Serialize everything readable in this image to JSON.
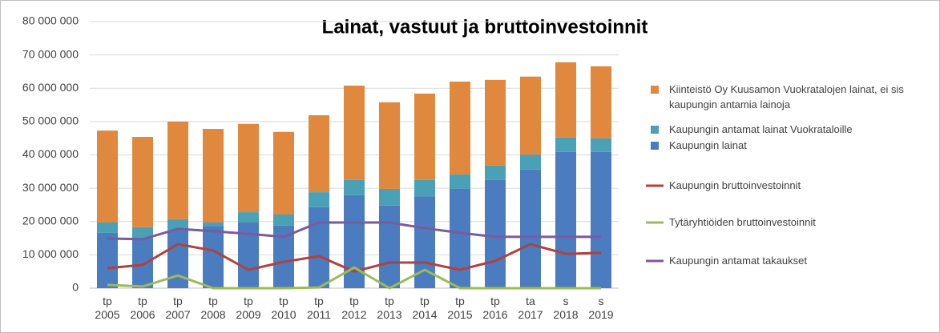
{
  "chart_data": {
    "type": "bar",
    "title": "Lainat, vastuut ja bruttoinvestoinnit",
    "categories": [
      "tp 2005",
      "tp 2006",
      "tp 2007",
      "tp 2008",
      "tp 2009",
      "tp 2010",
      "tp 2011",
      "tp 2012",
      "tp 2013",
      "tp 2014",
      "tp 2015",
      "tp 2016",
      "ta 2017",
      "s 2018",
      "s 2019"
    ],
    "series": [
      {
        "name": "Kiinteistö Oy Kuusamon Vuokratalojen lainat, ei sis kaupungin antamia lainoja",
        "type": "bar",
        "color": "#e0883e",
        "values": [
          27600000,
          27100000,
          29300000,
          28100000,
          26500000,
          24800000,
          23100000,
          28300000,
          26000000,
          25900000,
          27900000,
          25700000,
          23400000,
          22600000,
          21600000
        ]
      },
      {
        "name": "Kaupungin antamat lainat Vuokrataloille",
        "type": "bar",
        "color": "#4aa0b5",
        "values": [
          3100000,
          3200000,
          3200000,
          1000000,
          3100000,
          3300000,
          4500000,
          4600000,
          5000000,
          4900000,
          4300000,
          4300000,
          4500000,
          4300000,
          4100000
        ]
      },
      {
        "name": "Kaupungin lainat",
        "type": "bar",
        "color": "#4a7cbf",
        "values": [
          16600000,
          15100000,
          17500000,
          18700000,
          19700000,
          18800000,
          24300000,
          27900000,
          24800000,
          27600000,
          29800000,
          32500000,
          35600000,
          40900000,
          40900000
        ]
      },
      {
        "name": "Kaupungin bruttoinvestoinnit",
        "type": "line",
        "color": "#b0413e",
        "values": [
          6000000,
          7000000,
          13200000,
          11300000,
          5500000,
          7900000,
          9600000,
          5000000,
          7700000,
          7700000,
          5500000,
          8200000,
          13200000,
          10300000,
          10600000
        ]
      },
      {
        "name": "Tytäryhtiöiden bruttoinvestoinnit",
        "type": "line",
        "color": "#9bbb59",
        "values": [
          1000000,
          500000,
          3800000,
          0,
          0,
          0,
          200000,
          6200000,
          0,
          5500000,
          0,
          0,
          0,
          0,
          0
        ]
      },
      {
        "name": "Kaupungin antamat takaukset",
        "type": "line",
        "color": "#7b5a9e",
        "values": [
          14900000,
          14700000,
          17800000,
          17100000,
          16300000,
          15400000,
          19700000,
          19700000,
          19700000,
          18000000,
          16600000,
          15400000,
          15400000,
          15400000,
          15400000
        ]
      }
    ],
    "stacked": true,
    "ylim": [
      0,
      80000000
    ],
    "yticks": [
      {
        "value": 0,
        "label": "0"
      },
      {
        "value": 10000000,
        "label": "10 000 000"
      },
      {
        "value": 20000000,
        "label": "20 000 000"
      },
      {
        "value": 30000000,
        "label": "30 000 000"
      },
      {
        "value": 40000000,
        "label": "40 000 000"
      },
      {
        "value": 50000000,
        "label": "50 000 000"
      },
      {
        "value": 60000000,
        "label": "60 000 000"
      },
      {
        "value": 70000000,
        "label": "70 000 000"
      },
      {
        "value": 80000000,
        "label": "80 000 000"
      }
    ],
    "grid": true,
    "legend": "right"
  }
}
